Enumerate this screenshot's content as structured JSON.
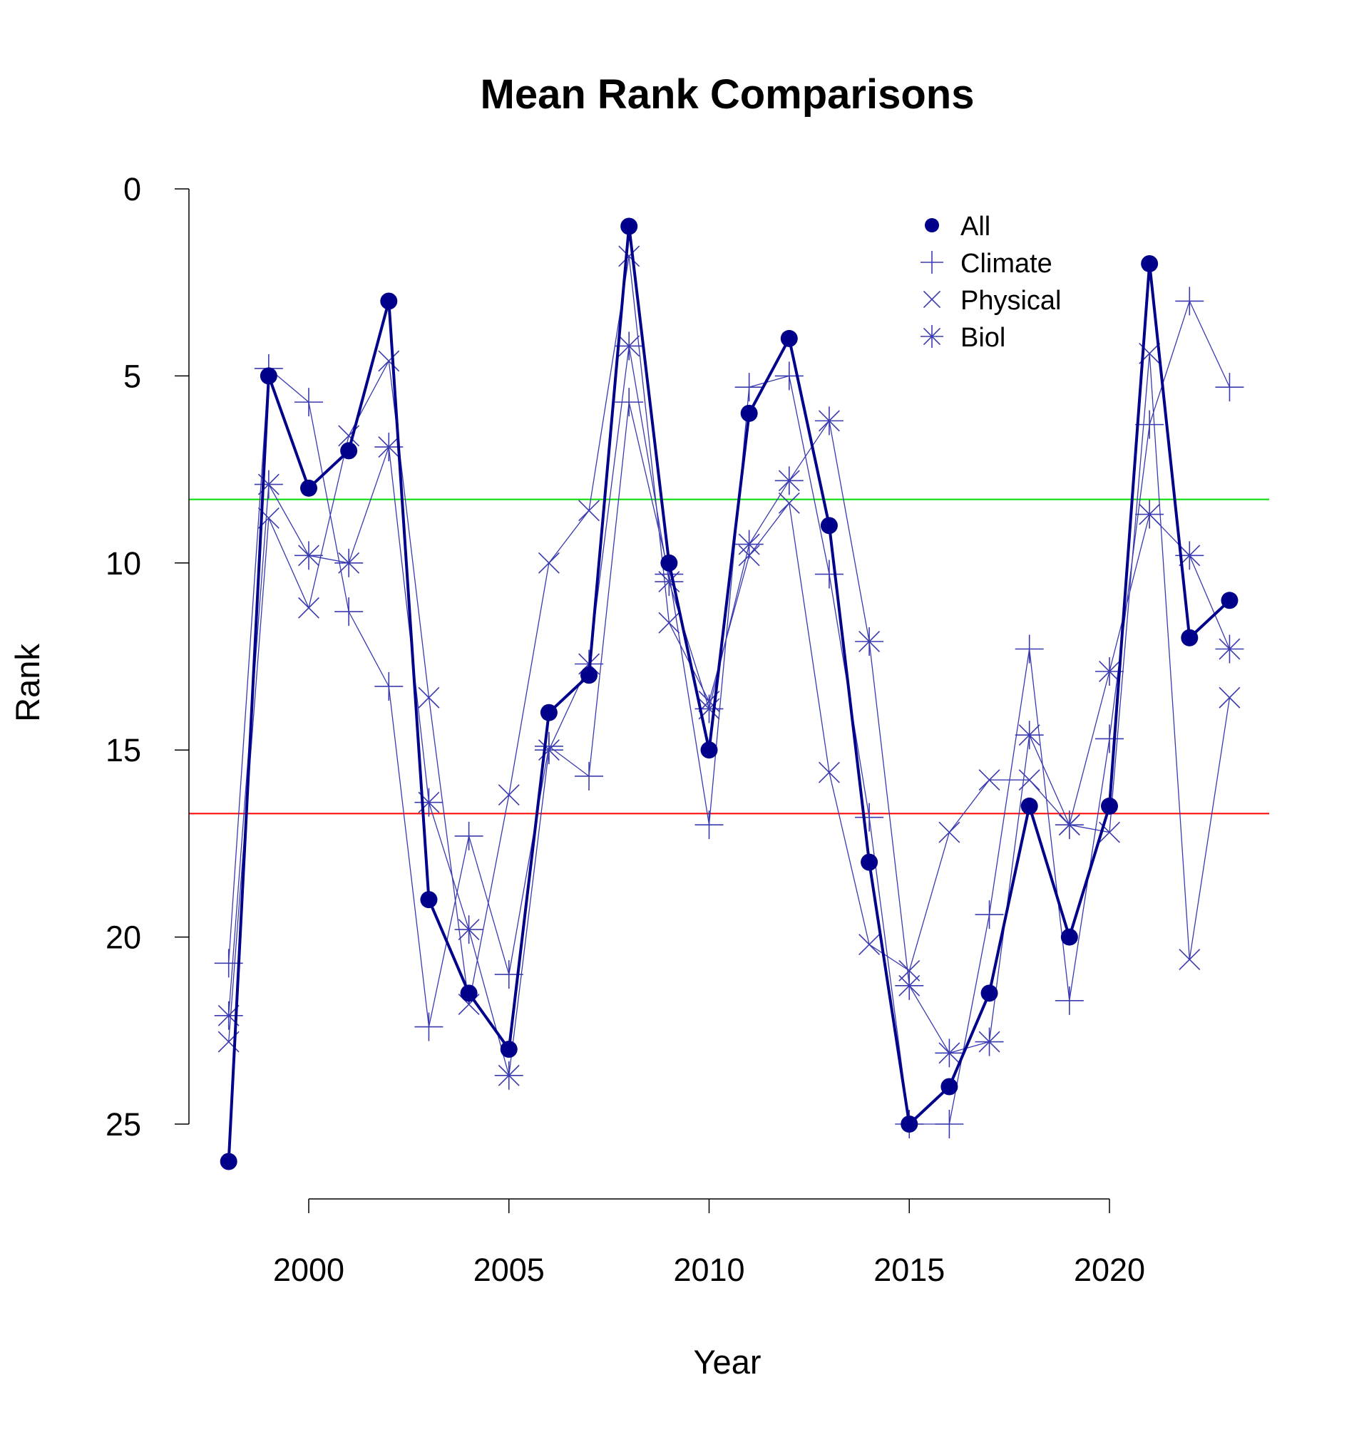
{
  "chart_data": {
    "type": "line",
    "title": "Mean Rank Comparisons",
    "xlabel": "Year",
    "ylabel": "Rank",
    "y_inverted": true,
    "xlim": [
      1998,
      2023
    ],
    "ylim": [
      0,
      25
    ],
    "x_ticks": [
      2000,
      2005,
      2010,
      2015,
      2020
    ],
    "y_ticks": [
      0,
      5,
      10,
      15,
      20,
      25
    ],
    "grid": false,
    "legend_position": "top-right",
    "x": [
      1998,
      1999,
      2000,
      2001,
      2002,
      2003,
      2004,
      2005,
      2006,
      2007,
      2008,
      2009,
      2010,
      2011,
      2012,
      2013,
      2014,
      2015,
      2016,
      2017,
      2018,
      2019,
      2020,
      2021,
      2022,
      2023
    ],
    "series": [
      {
        "name": "All",
        "marker": "filled-circle",
        "color": "#00008B",
        "values": [
          26,
          5,
          8,
          7,
          3,
          19,
          21.5,
          23,
          14,
          13,
          1,
          10,
          15,
          6,
          4,
          9,
          18,
          25,
          24,
          21.5,
          16.5,
          20,
          16.5,
          2,
          12,
          11
        ]
      },
      {
        "name": "Climate",
        "marker": "plus",
        "color": "#3A3AB0",
        "values": [
          20.7,
          4.8,
          5.7,
          11.3,
          13.3,
          22.4,
          17.3,
          21.0,
          14.9,
          15.7,
          5.7,
          10.3,
          17.0,
          5.3,
          5.0,
          10.3,
          16.8,
          25.0,
          25.0,
          19.4,
          12.3,
          21.7,
          14.7,
          6.3,
          3.0,
          5.3
        ]
      },
      {
        "name": "Physical",
        "marker": "cross",
        "color": "#3A3AB0",
        "values": [
          22.8,
          8.8,
          11.2,
          6.6,
          4.6,
          13.6,
          21.8,
          16.2,
          10.0,
          8.6,
          1.8,
          11.6,
          13.7,
          9.8,
          8.4,
          15.6,
          20.2,
          20.9,
          17.2,
          15.8,
          15.8,
          17.0,
          17.2,
          4.4,
          20.6,
          13.6
        ]
      },
      {
        "name": "Biol",
        "marker": "asterisk",
        "color": "#3A3AB0",
        "values": [
          22.1,
          7.9,
          9.8,
          10.0,
          6.9,
          16.4,
          19.8,
          23.7,
          15.0,
          12.7,
          4.2,
          10.5,
          13.9,
          9.5,
          7.8,
          6.2,
          12.1,
          21.3,
          23.1,
          22.8,
          14.6,
          17.0,
          12.9,
          8.7,
          9.8,
          12.3
        ]
      }
    ],
    "reference_lines": [
      {
        "y": 8.3,
        "color": "#00DD00"
      },
      {
        "y": 16.7,
        "color": "#FF0000"
      }
    ]
  }
}
